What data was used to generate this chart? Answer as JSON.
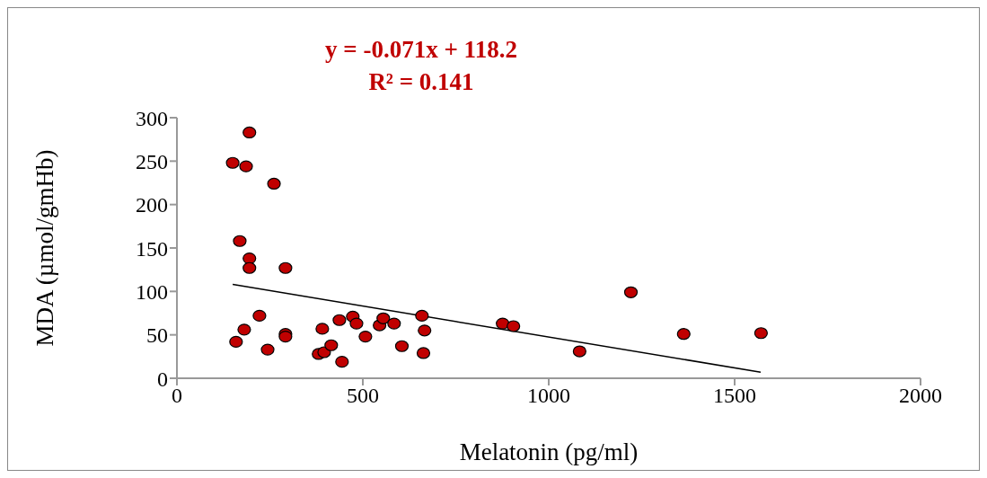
{
  "chart_data": {
    "type": "scatter",
    "annotations": [
      "y = -0.071x + 118.2",
      "R² = 0.141"
    ],
    "xlabel": "Melatonin (pg/ml)",
    "ylabel": "MDA (µmol/gmHb)",
    "xlim": [
      0,
      2000
    ],
    "xticks": [
      0,
      500,
      1000,
      1500,
      2000
    ],
    "ylim": [
      0,
      300
    ],
    "yticks": [
      0,
      50,
      100,
      150,
      200,
      250,
      300
    ],
    "grid": false,
    "marker": "circle",
    "series": [
      {
        "color": "#c00000",
        "x": [
          150,
          195,
          186,
          261,
          169,
          195,
          195,
          292,
          222,
          181,
          159,
          244,
          292,
          292,
          381,
          396,
          391,
          415,
          437,
          444,
          473,
          483,
          507,
          545,
          555,
          584,
          605,
          659,
          663,
          666,
          876,
          905,
          1083,
          1221,
          1363,
          1571
        ],
        "values": [
          248,
          283,
          244,
          224,
          158,
          138,
          127,
          127,
          72,
          56,
          42,
          33,
          51,
          48,
          28,
          30,
          57,
          38,
          67,
          19,
          71,
          63,
          48,
          61,
          69,
          63,
          37,
          72,
          29,
          55,
          63,
          60,
          31,
          99,
          51,
          52
        ]
      },
      {
        "type": "line",
        "color": "#000000",
        "marker": "none",
        "line_style": "solid",
        "x": [
          150,
          1570
        ],
        "values": [
          108,
          7
        ]
      }
    ]
  }
}
